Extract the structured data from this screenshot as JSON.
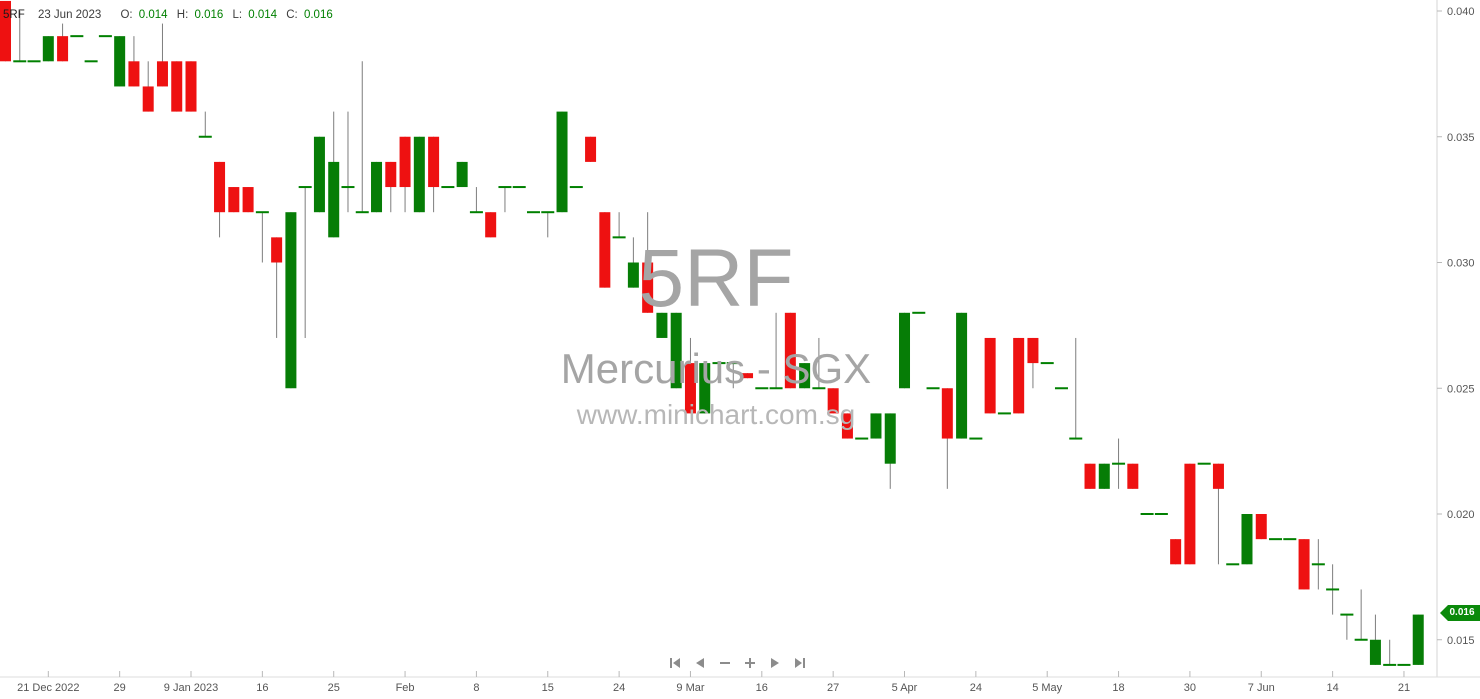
{
  "legend": {
    "ticker": "5RF",
    "date": "23 Jun 2023",
    "open_label": "O:",
    "open": "0.014",
    "high_label": "H:",
    "high": "0.016",
    "low_label": "L:",
    "low": "0.014",
    "close_label": "C:",
    "close": "0.016"
  },
  "watermark": {
    "line1": "5RF",
    "line2": "Mercurius - SGX",
    "line3": "www.minichart.com.sg"
  },
  "price_badge": {
    "label": "0.016",
    "color": "#0b8a0b"
  },
  "toolbar": {
    "buttons": [
      "skip-to-start",
      "step-backward",
      "zoom-out",
      "zoom-in",
      "step-forward",
      "skip-to-end"
    ]
  },
  "chart_data": {
    "type": "candlestick",
    "title": "5RF Mercurius - SGX daily candlestick chart",
    "colors": {
      "up": "#067d06",
      "down": "#ee1111",
      "wick": "#7d7d7d",
      "doji": "#008000"
    },
    "y_axis": {
      "max": 0.04,
      "min": 0.014,
      "labels": [
        {
          "t": "0.040",
          "p": 0.04
        },
        {
          "t": "0.035",
          "p": 0.035
        },
        {
          "t": "0.030",
          "p": 0.03
        },
        {
          "t": "0.025",
          "p": 0.025
        },
        {
          "t": "0.020",
          "p": 0.02
        },
        {
          "t": "0.015",
          "p": 0.015
        }
      ]
    },
    "x_axis": {
      "labels": [
        {
          "t": "21 Dec 2022",
          "i": 3
        },
        {
          "t": "29",
          "i": 8
        },
        {
          "t": "9 Jan 2023",
          "i": 13
        },
        {
          "t": "16",
          "i": 18
        },
        {
          "t": "25",
          "i": 23
        },
        {
          "t": "Feb",
          "i": 28
        },
        {
          "t": "8",
          "i": 33
        },
        {
          "t": "15",
          "i": 38
        },
        {
          "t": "24",
          "i": 43
        },
        {
          "t": "9 Mar",
          "i": 48
        },
        {
          "t": "16",
          "i": 53
        },
        {
          "t": "27",
          "i": 58
        },
        {
          "t": "5 Apr",
          "i": 63
        },
        {
          "t": "24",
          "i": 68
        },
        {
          "t": "5 May",
          "i": 73
        },
        {
          "t": "18",
          "i": 78
        },
        {
          "t": "30",
          "i": 83
        },
        {
          "t": "7 Jun",
          "i": 88
        },
        {
          "t": "14",
          "i": 93
        },
        {
          "t": "21",
          "i": 98
        }
      ]
    },
    "candles": [
      [
        0.0404,
        0.0404,
        0.038,
        0.038
      ],
      [
        0.038,
        0.04,
        0.038,
        0.038
      ],
      [
        0.038,
        0.038,
        0.038,
        0.038
      ],
      [
        0.038,
        0.039,
        0.038,
        0.039
      ],
      [
        0.039,
        0.0395,
        0.038,
        0.038
      ],
      [
        0.039,
        0.039,
        0.039,
        0.039
      ],
      [
        0.038,
        0.038,
        0.038,
        0.038
      ],
      [
        0.039,
        0.039,
        0.039,
        0.039
      ],
      [
        0.037,
        0.039,
        0.037,
        0.039
      ],
      [
        0.038,
        0.039,
        0.037,
        0.037
      ],
      [
        0.037,
        0.038,
        0.036,
        0.036
      ],
      [
        0.038,
        0.0395,
        0.037,
        0.037
      ],
      [
        0.038,
        0.038,
        0.036,
        0.036
      ],
      [
        0.038,
        0.038,
        0.036,
        0.036
      ],
      [
        0.035,
        0.036,
        0.035,
        0.035
      ],
      [
        0.034,
        0.034,
        0.031,
        0.032
      ],
      [
        0.033,
        0.033,
        0.032,
        0.032
      ],
      [
        0.033,
        0.033,
        0.032,
        0.032
      ],
      [
        0.032,
        0.032,
        0.03,
        0.032
      ],
      [
        0.031,
        0.031,
        0.027,
        0.03
      ],
      [
        0.025,
        0.032,
        0.025,
        0.032
      ],
      [
        0.033,
        0.033,
        0.027,
        0.033
      ],
      [
        0.032,
        0.035,
        0.032,
        0.035
      ],
      [
        0.031,
        0.036,
        0.031,
        0.034
      ],
      [
        0.033,
        0.036,
        0.032,
        0.033
      ],
      [
        0.032,
        0.038,
        0.032,
        0.032
      ],
      [
        0.032,
        0.034,
        0.032,
        0.034
      ],
      [
        0.034,
        0.034,
        0.032,
        0.033
      ],
      [
        0.035,
        0.035,
        0.032,
        0.033
      ],
      [
        0.032,
        0.035,
        0.032,
        0.035
      ],
      [
        0.035,
        0.035,
        0.032,
        0.033
      ],
      [
        0.033,
        0.033,
        0.033,
        0.033
      ],
      [
        0.033,
        0.034,
        0.033,
        0.034
      ],
      [
        0.032,
        0.033,
        0.032,
        0.032
      ],
      [
        0.032,
        0.032,
        0.031,
        0.031
      ],
      [
        0.033,
        0.033,
        0.032,
        0.033
      ],
      [
        0.033,
        0.033,
        0.033,
        0.033
      ],
      [
        0.032,
        0.032,
        0.032,
        0.032
      ],
      [
        0.032,
        0.032,
        0.031,
        0.032
      ],
      [
        0.032,
        0.036,
        0.032,
        0.036
      ],
      [
        0.033,
        0.033,
        0.033,
        0.033
      ],
      [
        0.035,
        0.035,
        0.034,
        0.034
      ],
      [
        0.032,
        0.032,
        0.029,
        0.029
      ],
      [
        0.031,
        0.032,
        0.031,
        0.031
      ],
      [
        0.029,
        0.031,
        0.029,
        0.03
      ],
      [
        0.03,
        0.032,
        0.028,
        0.028
      ],
      [
        0.027,
        0.028,
        0.027,
        0.028
      ],
      [
        0.025,
        0.028,
        0.025,
        0.028
      ],
      [
        0.026,
        0.027,
        0.024,
        0.024
      ],
      [
        0.024,
        0.026,
        0.024,
        0.026
      ],
      [
        0.026,
        0.026,
        0.026,
        0.026
      ],
      [
        0.026,
        0.026,
        0.025,
        0.026
      ],
      [
        0.0256,
        0.0256,
        0.0254,
        0.0254
      ],
      [
        0.025,
        0.025,
        0.025,
        0.025
      ],
      [
        0.025,
        0.028,
        0.025,
        0.025
      ],
      [
        0.028,
        0.028,
        0.025,
        0.025
      ],
      [
        0.025,
        0.026,
        0.025,
        0.026
      ],
      [
        0.025,
        0.027,
        0.025,
        0.025
      ],
      [
        0.025,
        0.025,
        0.024,
        0.024
      ],
      [
        0.024,
        0.024,
        0.023,
        0.023
      ],
      [
        0.023,
        0.023,
        0.023,
        0.023
      ],
      [
        0.023,
        0.024,
        0.023,
        0.024
      ],
      [
        0.022,
        0.024,
        0.021,
        0.024
      ],
      [
        0.025,
        0.028,
        0.025,
        0.028
      ],
      [
        0.028,
        0.028,
        0.028,
        0.028
      ],
      [
        0.025,
        0.025,
        0.025,
        0.025
      ],
      [
        0.025,
        0.025,
        0.021,
        0.023
      ],
      [
        0.023,
        0.028,
        0.023,
        0.028
      ],
      [
        0.023,
        0.023,
        0.023,
        0.023
      ],
      [
        0.027,
        0.027,
        0.024,
        0.024
      ],
      [
        0.024,
        0.024,
        0.024,
        0.024
      ],
      [
        0.027,
        0.027,
        0.024,
        0.024
      ],
      [
        0.027,
        0.027,
        0.025,
        0.026
      ],
      [
        0.026,
        0.026,
        0.026,
        0.026
      ],
      [
        0.025,
        0.025,
        0.025,
        0.025
      ],
      [
        0.023,
        0.027,
        0.023,
        0.023
      ],
      [
        0.022,
        0.022,
        0.021,
        0.021
      ],
      [
        0.021,
        0.022,
        0.021,
        0.022
      ],
      [
        0.022,
        0.023,
        0.021,
        0.022
      ],
      [
        0.022,
        0.022,
        0.021,
        0.021
      ],
      [
        0.02,
        0.02,
        0.02,
        0.02
      ],
      [
        0.02,
        0.02,
        0.02,
        0.02
      ],
      [
        0.019,
        0.019,
        0.018,
        0.018
      ],
      [
        0.022,
        0.022,
        0.018,
        0.018
      ],
      [
        0.022,
        0.022,
        0.022,
        0.022
      ],
      [
        0.022,
        0.022,
        0.018,
        0.021
      ],
      [
        0.018,
        0.018,
        0.018,
        0.018
      ],
      [
        0.018,
        0.02,
        0.018,
        0.02
      ],
      [
        0.02,
        0.02,
        0.019,
        0.019
      ],
      [
        0.019,
        0.019,
        0.019,
        0.019
      ],
      [
        0.019,
        0.019,
        0.019,
        0.019
      ],
      [
        0.019,
        0.019,
        0.017,
        0.017
      ],
      [
        0.018,
        0.019,
        0.017,
        0.018
      ],
      [
        0.017,
        0.018,
        0.016,
        0.017
      ],
      [
        0.016,
        0.016,
        0.015,
        0.016
      ],
      [
        0.015,
        0.017,
        0.015,
        0.015
      ],
      [
        0.014,
        0.016,
        0.014,
        0.015
      ],
      [
        0.014,
        0.015,
        0.014,
        0.014
      ],
      [
        0.014,
        0.014,
        0.014,
        0.014
      ],
      [
        0.014,
        0.016,
        0.014,
        0.016
      ]
    ]
  }
}
